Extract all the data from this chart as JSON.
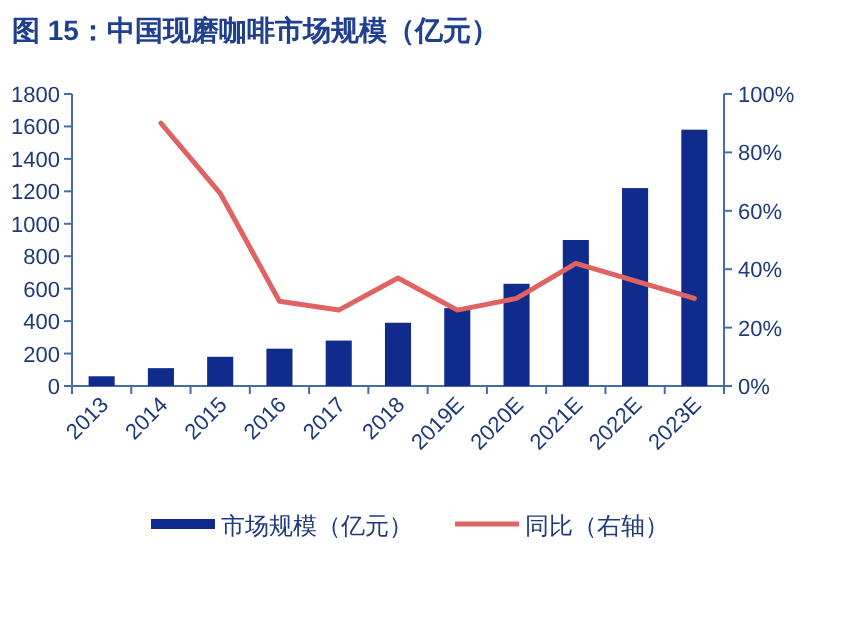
{
  "chart_data": {
    "type": "bar",
    "title": "图 15：中国现磨咖啡市场规模（亿元）",
    "categories": [
      "2013",
      "2014",
      "2015",
      "2016",
      "2017",
      "2018",
      "2019E",
      "2020E",
      "2021E",
      "2022E",
      "2023E"
    ],
    "series": [
      {
        "name": "市场规模（亿元）",
        "color": "#0f2b8c",
        "values": [
          60,
          110,
          180,
          230,
          280,
          390,
          480,
          630,
          900,
          1220,
          1580
        ]
      },
      {
        "name": "同比（右轴）",
        "type": "line",
        "axis": "y2",
        "color": "#e06363",
        "values": [
          null,
          90,
          66,
          29,
          26,
          37,
          26,
          30,
          42,
          36,
          30
        ]
      }
    ],
    "ylim": [
      0,
      1800
    ],
    "yticks": [
      0,
      200,
      400,
      600,
      800,
      1000,
      1200,
      1400,
      1600,
      1800
    ],
    "y2lim": [
      0,
      100
    ],
    "y2ticks": [
      {
        "value": 0,
        "label": "0%"
      },
      {
        "value": 20,
        "label": "20%"
      },
      {
        "value": 40,
        "label": "40%"
      },
      {
        "value": 60,
        "label": "60%"
      },
      {
        "value": 80,
        "label": "80%"
      },
      {
        "value": 100,
        "label": "100%"
      }
    ],
    "legend": "bottom"
  }
}
